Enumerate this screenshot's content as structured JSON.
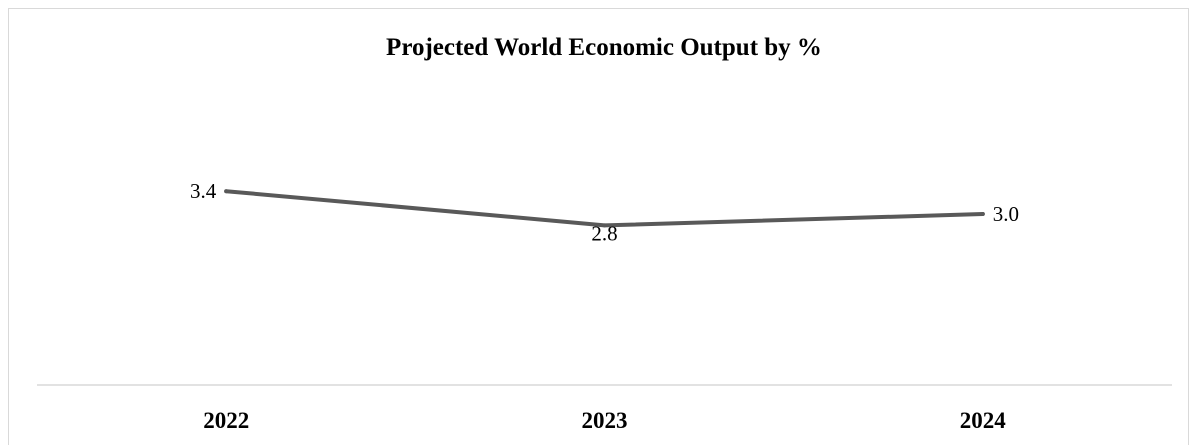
{
  "chart_data": {
    "type": "line",
    "title": "Projected World Economic Output by %",
    "xlabel": "",
    "ylabel": "",
    "categories": [
      "2022",
      "2023",
      "2024"
    ],
    "series": [
      {
        "values": [
          3.4,
          2.8,
          3.0
        ],
        "labels": [
          "3.4",
          "2.8",
          "3.0"
        ],
        "color": "#595959"
      }
    ],
    "ylim": [
      0,
      5
    ],
    "grid": false,
    "legend": "none",
    "axis_color": "#d9d9d9"
  }
}
